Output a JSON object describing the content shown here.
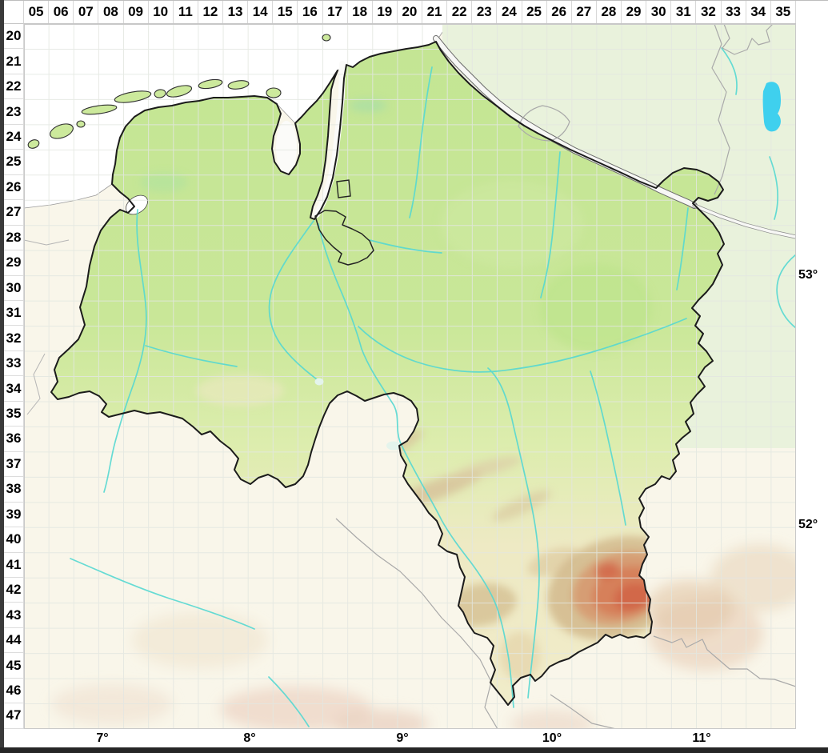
{
  "grid": {
    "column_labels": [
      "05",
      "06",
      "07",
      "08",
      "09",
      "10",
      "11",
      "12",
      "13",
      "14",
      "15",
      "16",
      "17",
      "18",
      "19",
      "20",
      "21",
      "22",
      "23",
      "24",
      "25",
      "26",
      "27",
      "28",
      "29",
      "30",
      "31",
      "32",
      "33",
      "34",
      "35"
    ],
    "row_labels": [
      "20",
      "21",
      "22",
      "23",
      "24",
      "25",
      "26",
      "27",
      "28",
      "29",
      "30",
      "31",
      "32",
      "33",
      "34",
      "35",
      "36",
      "37",
      "38",
      "39",
      "40",
      "41",
      "42",
      "43",
      "44",
      "45",
      "46",
      "47"
    ]
  },
  "geo": {
    "longitudes": [
      "7°",
      "8°",
      "9°",
      "10°",
      "11°"
    ],
    "latitudes": [
      "53°",
      "52°"
    ]
  },
  "map_colors": {
    "sea": "#ffffff",
    "state_fill_north": "#c3e593",
    "state_fill_south": "#f1ecca",
    "neighbor_north": "#e9f2dc",
    "neighbor_south": "#f9f6ea",
    "state_border": "#1b1b1b",
    "admin_border": "#a9a9a9",
    "river": "#55d8d2",
    "lake": "#3fd0ee",
    "elevation_mid": "#d69a70",
    "elevation_high": "#d2664a",
    "grid_line": "#e3e7e1",
    "label_color": "#000000"
  }
}
